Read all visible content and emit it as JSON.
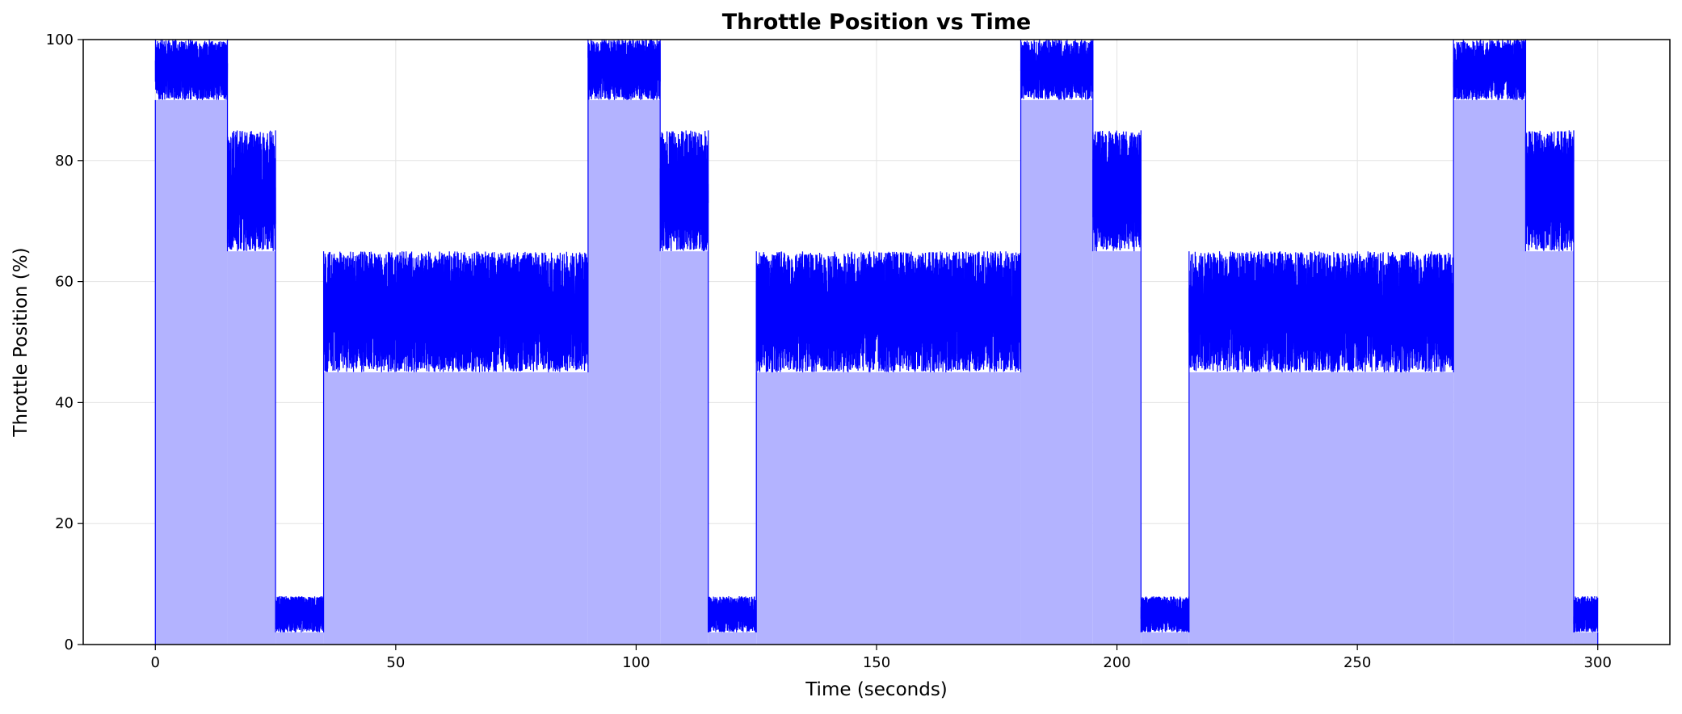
{
  "chart_data": {
    "type": "area",
    "title": "Throttle Position vs Time",
    "xlabel": "Time (seconds)",
    "ylabel": "Throttle Position (%)",
    "xlim": [
      -15,
      315
    ],
    "ylim": [
      0,
      100
    ],
    "xticks": [
      0,
      50,
      100,
      150,
      200,
      250,
      300
    ],
    "yticks": [
      0,
      20,
      40,
      60,
      80,
      100
    ],
    "grid": true,
    "legend": "none",
    "colors": {
      "line": "#0000ff",
      "fill": "#b3b3ff",
      "grid": "#e3e3e3"
    },
    "series": [
      {
        "segments": [
          {
            "start": 0,
            "end": 15,
            "min": 90,
            "max": 100
          },
          {
            "start": 15,
            "end": 25,
            "min": 65,
            "max": 85
          },
          {
            "start": 25,
            "end": 35,
            "min": 2,
            "max": 8
          },
          {
            "start": 35,
            "end": 90,
            "min": 45,
            "max": 65
          },
          {
            "start": 90,
            "end": 105,
            "min": 90,
            "max": 100
          },
          {
            "start": 105,
            "end": 115,
            "min": 65,
            "max": 85
          },
          {
            "start": 115,
            "end": 125,
            "min": 2,
            "max": 8
          },
          {
            "start": 125,
            "end": 180,
            "min": 45,
            "max": 65
          },
          {
            "start": 180,
            "end": 195,
            "min": 90,
            "max": 100
          },
          {
            "start": 195,
            "end": 205,
            "min": 65,
            "max": 85
          },
          {
            "start": 205,
            "end": 215,
            "min": 2,
            "max": 8
          },
          {
            "start": 215,
            "end": 270,
            "min": 45,
            "max": 65
          },
          {
            "start": 270,
            "end": 285,
            "min": 90,
            "max": 100
          },
          {
            "start": 285,
            "end": 295,
            "min": 65,
            "max": 85
          },
          {
            "start": 295,
            "end": 300,
            "min": 2,
            "max": 8
          }
        ]
      }
    ]
  }
}
